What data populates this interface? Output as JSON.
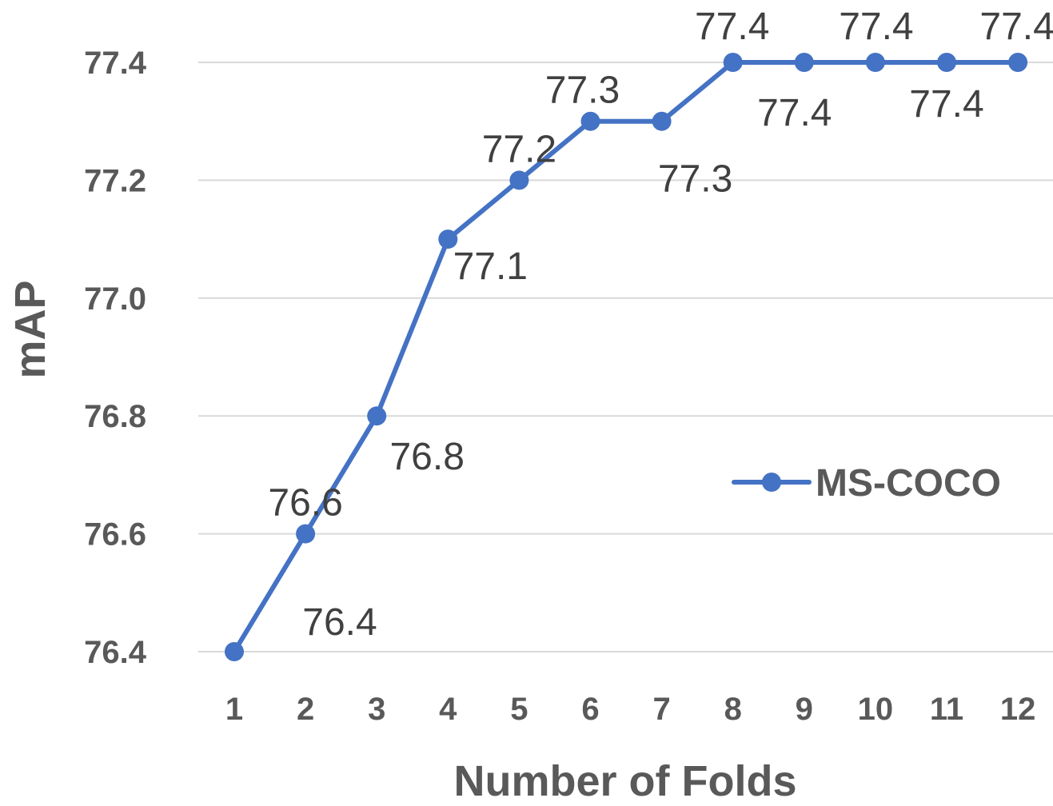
{
  "chart_data": {
    "type": "line",
    "x": [
      1,
      2,
      3,
      4,
      5,
      6,
      7,
      8,
      9,
      10,
      11,
      12
    ],
    "series": [
      {
        "name": "MS-COCO",
        "color": "#4472c4",
        "values": [
          76.4,
          76.6,
          76.8,
          77.1,
          77.2,
          77.3,
          77.3,
          77.4,
          77.4,
          77.4,
          77.4,
          77.4
        ]
      }
    ],
    "data_labels": [
      "76.4",
      "76.6",
      "76.8",
      "77.1",
      "77.2",
      "77.3",
      "77.3",
      "77.4",
      "77.4",
      "77.4",
      "77.4",
      "77.4"
    ],
    "xlabel": "Number of Folds",
    "ylabel": "mAP",
    "x_tick_labels": [
      "1",
      "2",
      "3",
      "4",
      "5",
      "6",
      "7",
      "8",
      "9",
      "10",
      "11",
      "12"
    ],
    "y_ticks": [
      76.4,
      76.6,
      76.8,
      77.0,
      77.2,
      77.4
    ],
    "y_tick_labels": [
      "76.4",
      "76.6",
      "76.8",
      "77.0",
      "77.2",
      "77.4"
    ],
    "ylim": [
      76.4,
      77.4
    ],
    "grid": true,
    "legend_position": "right"
  }
}
